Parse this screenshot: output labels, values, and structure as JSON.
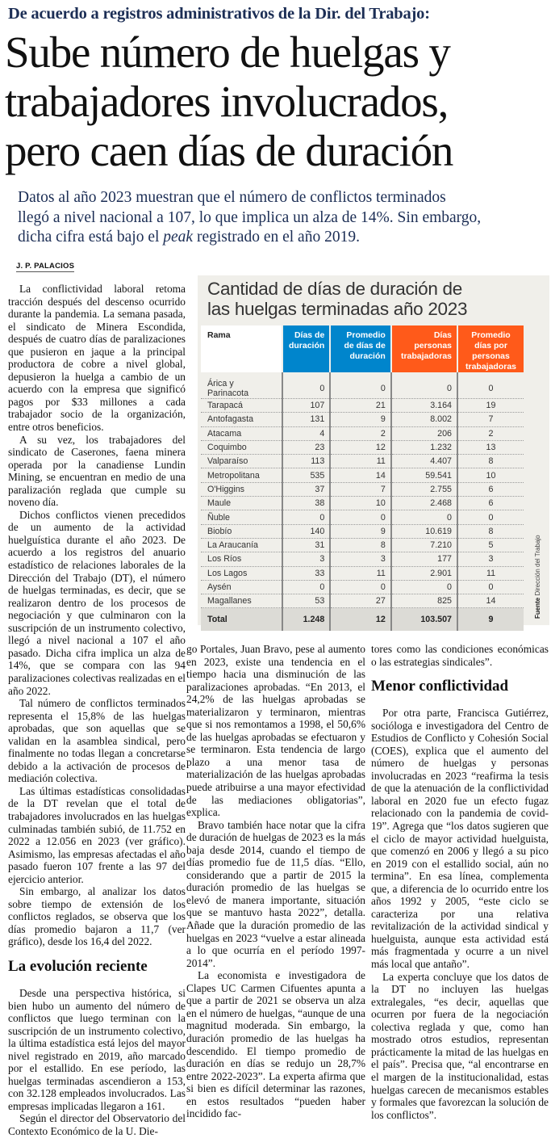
{
  "header": {
    "kicker": "De acuerdo a registros administrativos de la Dir. del Trabajo:",
    "title_lines": [
      "Sube número de huelgas y",
      "trabajadores involucrados,",
      "pero caen días de duración"
    ],
    "deck_lines": [
      "Datos al año 2023 muestran que el número de conflictos terminados",
      "llegó a nivel nacional a 107, lo que implica un alza de 14%. Sin embargo,",
      "dicha cifra está bajo el ",
      "peak",
      " registrado en el año 2019."
    ],
    "byline": "J. P. PALACIOS"
  },
  "article": {
    "col1": [
      "La conflictividad laboral retoma tracción después del descenso ocurrido durante la pandemia. La semana pasada, el sindicato de Minera Escondida, después de cuatro días de paralizaciones que pusieron en jaque a la principal productora de cobre a nivel global, depusieron la huelga a cambio de un acuerdo con la empresa que significó pagos por $33 millones a cada trabajador socio de la organización, entre otros beneficios.",
      "A su vez, los trabajadores del sindicato de Caserones, faena minera operada por la canadiense Lundin Mining, se encuentran en medio de una paralización reglada que cumple su noveno día.",
      "Dichos conflictos vienen precedidos de un aumento de la actividad huelguística durante el año 2023. De acuerdo a los registros del anuario estadístico de relaciones laborales de la Dirección del Trabajo (DT), el número de huelgas terminadas, es decir, que se realizaron dentro de los procesos de negociación y que culminaron con la suscripción de un instrumento colectivo, llegó a nivel nacional a 107 el año pasado. Dicha cifra implica un alza de 14%, que se compara con las 94 paralizaciones colectivas realizadas en el año 2022.",
      "Tal número de conflictos terminados representa el 15,8% de las huelgas aprobadas, que son aquellas que se validan en la asamblea sindical, pero finalmente no todas llegan a concretarse debido a la activación de procesos de mediación colectiva.",
      "Las últimas estadísticas consolidadas de la DT revelan que el total de trabajadores involucrados en las huelgas culminadas también subió, de 11.752 en 2022 a 12.056 en 2023 (ver gráfico). Asimismo, las empresas afectadas el año pasado fueron 107 frente a las 97 del ejercicio anterior.",
      "Sin embargo, al analizar los datos sobre tiempo de extensión de los conflictos reglados, se observa que los días promedio bajaron a 11,7 (ver gráfico), desde los 16,4 del 2022."
    ],
    "subhead1": "La evolución reciente",
    "col1b": [
      "Desde una perspectiva histórica, si bien hubo un aumento del número de conflictos que luego terminan con la suscripción de un instrumento colectivo, la última estadística está lejos del mayor nivel registrado en 2019, año marcado por el estallido. En ese período, las huelgas terminadas ascendieron a 153, con 32.128 empleados involucrados. Las empresas implicadas llegaron a 161.",
      "Según el director del Observatorio del Contexto Económico de la U. Die-"
    ],
    "col2": [
      "go Portales, Juan Bravo, pese al aumento en 2023, existe una tendencia en el tiempo hacia una disminución de las paralizaciones aprobadas. “En 2013, el 24,2% de las huelgas aprobadas se materializaron y terminaron, mientras que si nos remontamos a 1998, el 50,6% de las huelgas aprobadas se efectuaron y se terminaron. Esta tendencia de largo plazo a una menor tasa de materialización de las huelgas aprobadas puede atribuirse a una mayor efectividad de las mediaciones obligatorias”, explica.",
      "Bravo también hace notar que la cifra de duración de huelgas de 2023 es la más baja desde 2014, cuando el tiempo de días promedio fue de 11,5 días. “Ello, considerando que a partir de 2015 la duración promedio de las huelgas se elevó de manera importante, situación que se mantuvo hasta 2022”, detalla. Añade que la duración promedio de las huelgas en 2023 “vuelve a estar alineada a lo que ocurría en el período 1997-2014”.",
      "La economista e investigadora de Clapes UC Carmen Cifuentes apunta a que a partir de 2021 se observa un alza en el número de huelgas, “aunque de una magnitud moderada. Sin embargo, la duración promedio de las huelgas ha descendido. El tiempo promedio de duración en días se redujo un 28,7% entre 2022-2023”. La experta afirma que si bien es difícil determinar las razones, en estos resultados “pueden haber incidido fac-"
    ],
    "col3a": "tores como las condiciones económicas o las estrategias sindicales”.",
    "subhead2": "Menor conflictividad",
    "col3": [
      "Por otra parte, Francisca Gutiérrez, socióloga e investigadora del Centro de Estudios de Conflicto y Cohesión Social (COES), explica que el aumento del número de huelgas y personas involucradas en 2023 “reafirma la tesis de que la atenuación de la conflictividad laboral en 2020 fue un efecto fugaz relacionado con la pandemia de covid-19”. Agrega que “los datos sugieren que el ciclo de mayor actividad huelguista, que comenzó en 2006 y llegó a su pico en 2019 con el estallido social, aún no termina”. En esa línea, complementa que, a diferencia de lo ocurrido entre los años 1992 y 2005, “este ciclo se caracteriza por una relativa revitalización de la actividad sindical y huelguista, aunque esta actividad está más fragmentada y ocurre a un nivel más local que antaño”.",
      "La experta concluye que los datos de la DT no incluyen las huelgas extralegales, “es decir, aquellas que ocurren por fuera de la negociación colectiva reglada y que, como han mostrado otros estudios, representan prácticamente la mitad de las huelgas en el país”. Precisa que, “al encontrarse en el margen de la institucionalidad, estas huelgas carecen de mecanismos estables y formales que favorezcan la solución de los conflictos”."
    ]
  },
  "infographic": {
    "title_lines": [
      "Cantidad de días de duración de",
      "las huelgas terminadas año 2023"
    ],
    "columns": [
      "Rama",
      "Días de duración",
      "Promedio de días de duración",
      "Días personas trabajadoras",
      "Promedio días por personas trabajadoras"
    ],
    "colors": {
      "blue": "#0085cc",
      "orange": "#ff5a1a"
    },
    "rows": [
      [
        "Árica y Parinacota",
        "0",
        "0",
        "0",
        "0"
      ],
      [
        "Tarapacá",
        "107",
        "21",
        "3.164",
        "19"
      ],
      [
        "Antofagasta",
        "131",
        "9",
        "8.002",
        "7"
      ],
      [
        "Atacama",
        "4",
        "2",
        "206",
        "2"
      ],
      [
        "Coquimbo",
        "23",
        "12",
        "1.232",
        "13"
      ],
      [
        "Valparaíso",
        "113",
        "11",
        "4.407",
        "8"
      ],
      [
        "Metropolitana",
        "535",
        "14",
        "59.541",
        "10"
      ],
      [
        "O'Higgins",
        "37",
        "7",
        "2.755",
        "6"
      ],
      [
        "Maule",
        "38",
        "10",
        "2.468",
        "6"
      ],
      [
        "Ñuble",
        "0",
        "0",
        "0",
        "0"
      ],
      [
        "Biobío",
        "140",
        "9",
        "10.619",
        "8"
      ],
      [
        "La Araucanía",
        "31",
        "8",
        "7.210",
        "5"
      ],
      [
        "Los Ríos",
        "3",
        "3",
        "177",
        "3"
      ],
      [
        "Los Lagos",
        "33",
        "11",
        "2.901",
        "11"
      ],
      [
        "Aysén",
        "0",
        "0",
        "0",
        "0"
      ],
      [
        "Magallanes",
        "53",
        "27",
        "825",
        "14"
      ]
    ],
    "total": [
      "Total",
      "1.248",
      "12",
      "103.507",
      "9"
    ],
    "source_label": "Fuente",
    "source": "Dirección del Trabajo"
  }
}
